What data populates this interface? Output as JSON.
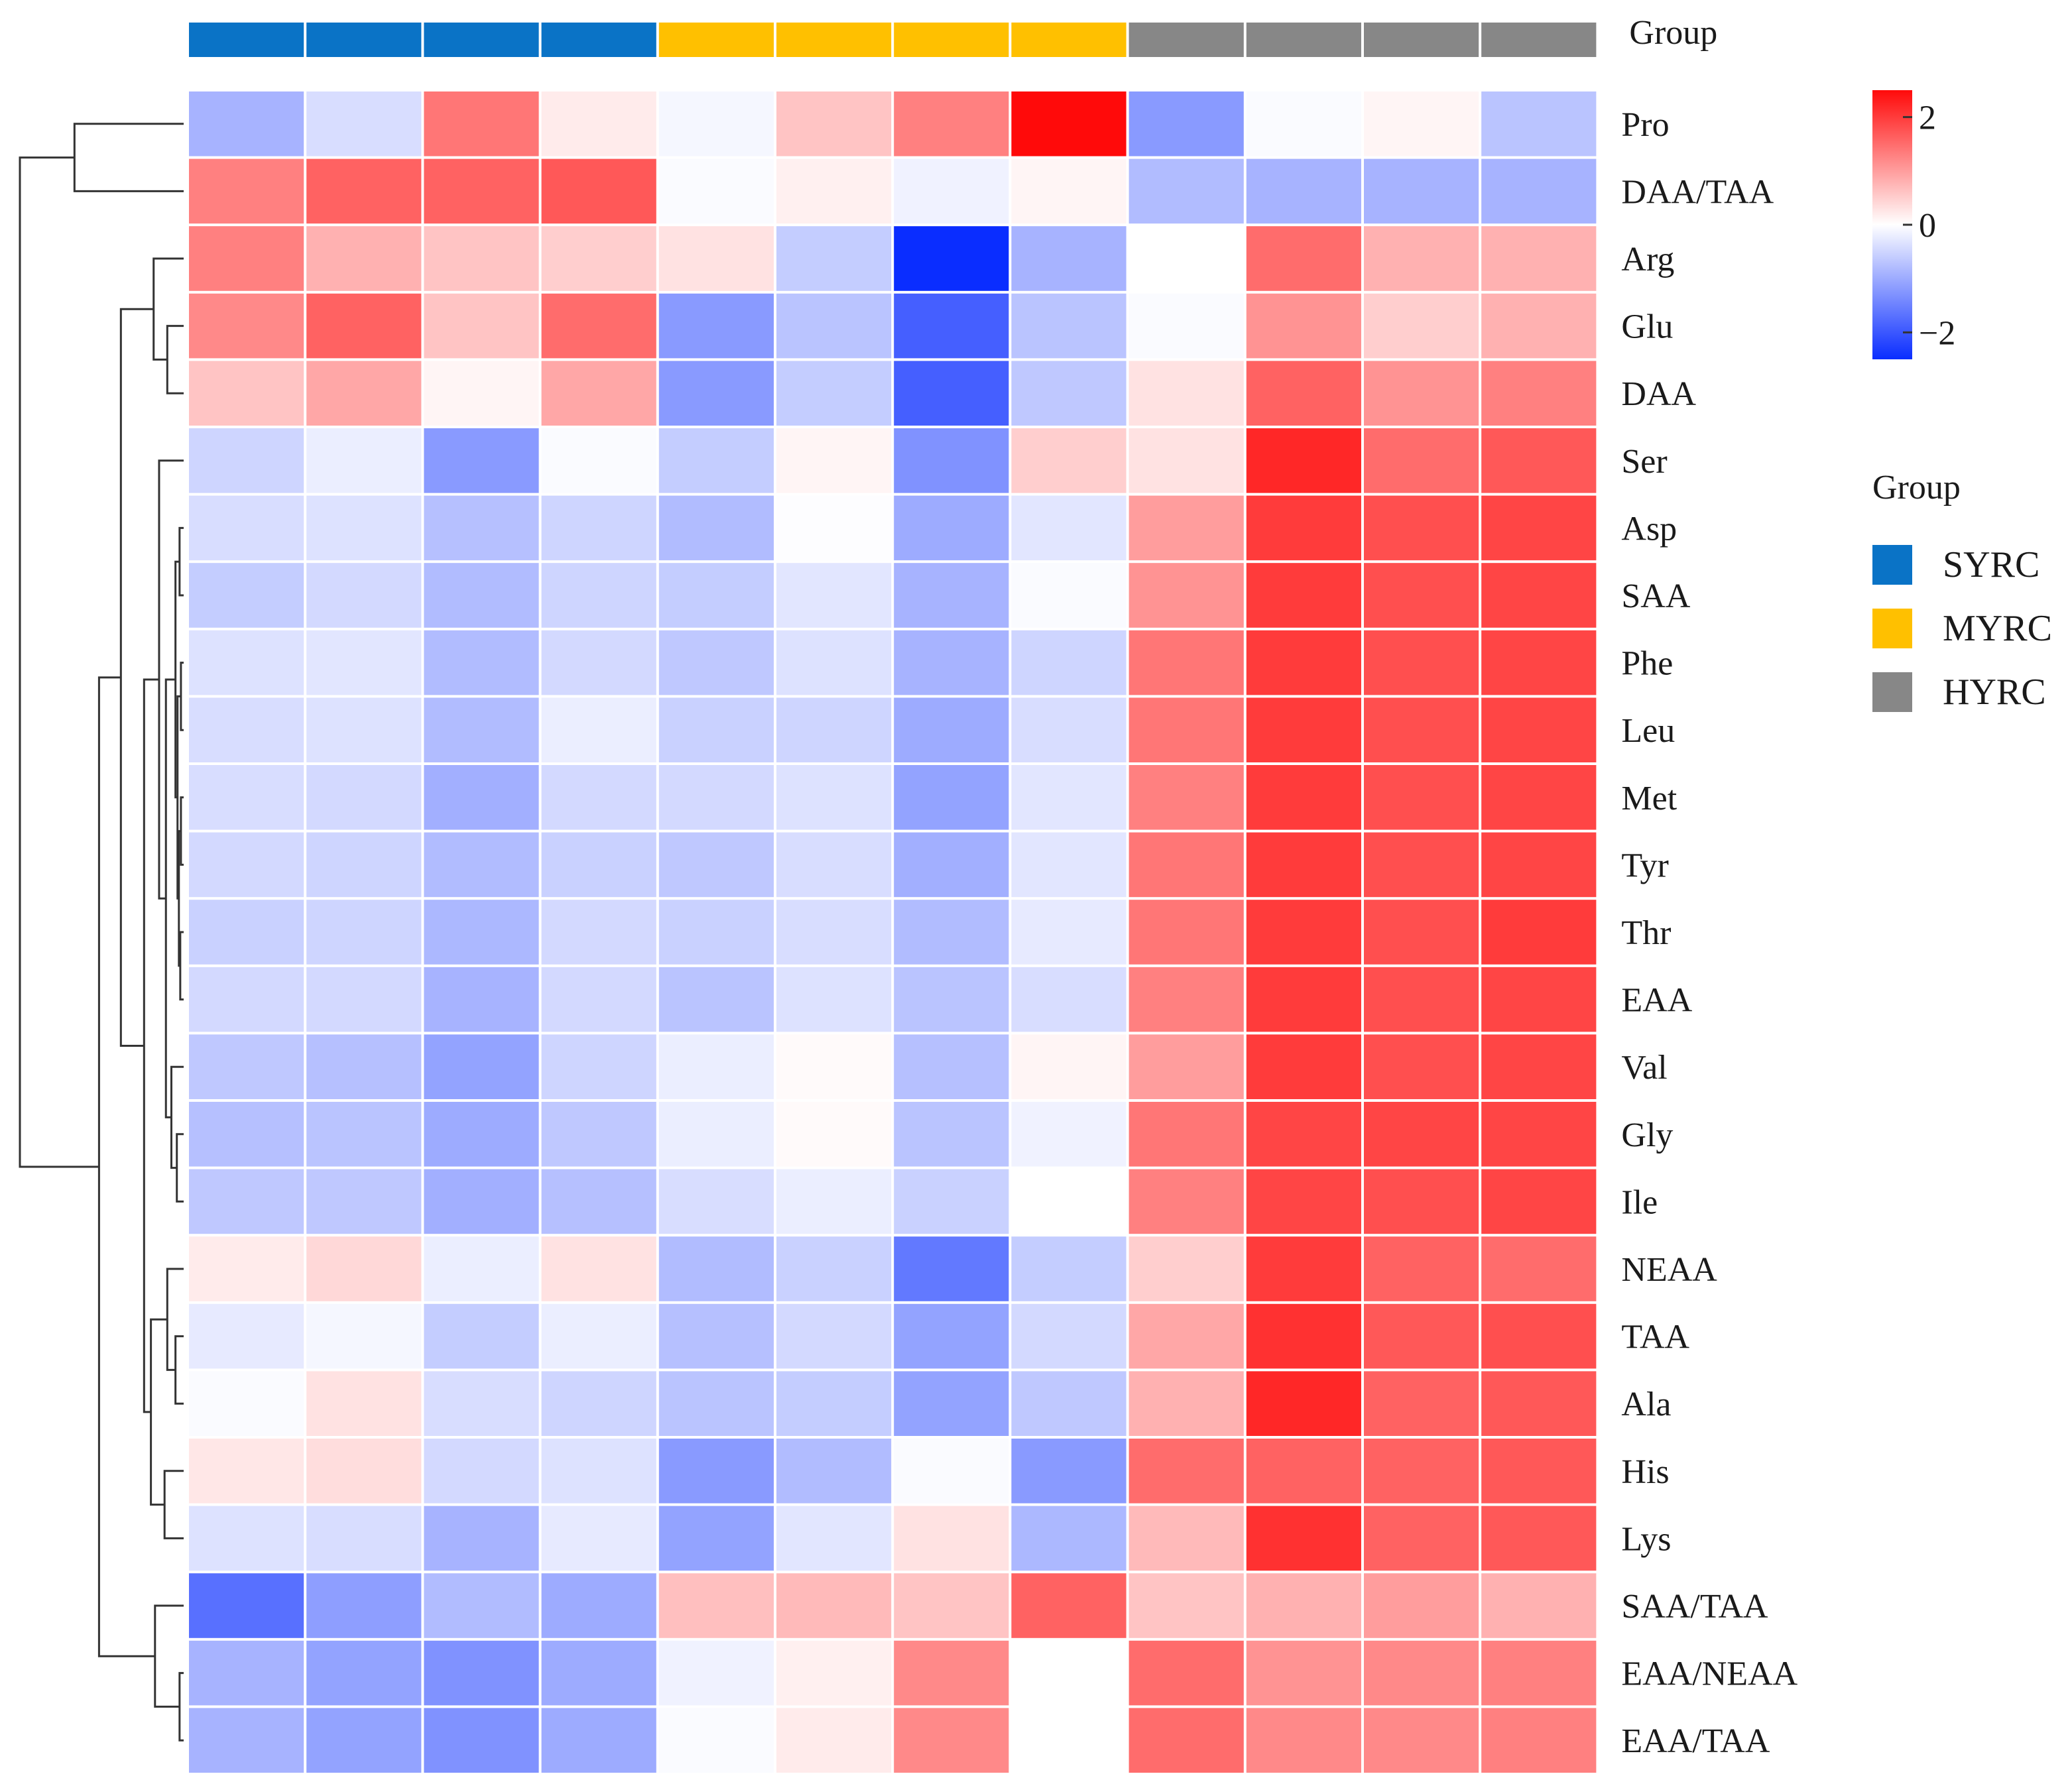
{
  "chart_data": {
    "type": "heatmap",
    "title": "",
    "xlabel": "",
    "ylabel": "",
    "annotation_bar": {
      "label": "Group",
      "groups": [
        "SYRC",
        "SYRC",
        "SYRC",
        "SYRC",
        "MYRC",
        "MYRC",
        "MYRC",
        "MYRC",
        "HYRC",
        "HYRC",
        "HYRC",
        "HYRC"
      ]
    },
    "rows": [
      "Pro",
      "DAA/TAA",
      "Arg",
      "Glu",
      "DAA",
      "Ser",
      "Asp",
      "SAA",
      "Phe",
      "Leu",
      "Met",
      "Tyr",
      "Thr",
      "EAA",
      "Val",
      "Gly",
      "Ile",
      "NEAA",
      "TAA",
      "Ala",
      "His",
      "Lys",
      "SAA/TAA",
      "EAA/NEAA",
      "EAA/TAA"
    ],
    "values": [
      [
        -0.9,
        -0.4,
        1.4,
        0.2,
        -0.1,
        0.6,
        1.3,
        2.5,
        -1.2,
        -0.05,
        0.1,
        -0.7
      ],
      [
        1.3,
        1.6,
        1.6,
        1.7,
        -0.05,
        0.15,
        -0.15,
        0.1,
        -0.8,
        -0.9,
        -0.9,
        -0.9
      ],
      [
        1.3,
        0.8,
        0.6,
        0.5,
        0.3,
        -0.6,
        -2.5,
        -0.9,
        0.0,
        1.5,
        0.8,
        0.8
      ],
      [
        1.2,
        1.6,
        0.6,
        1.5,
        -1.2,
        -0.7,
        -1.9,
        -0.7,
        -0.05,
        1.1,
        0.5,
        0.8
      ],
      [
        0.6,
        0.9,
        0.1,
        0.9,
        -1.2,
        -0.6,
        -1.9,
        -0.65,
        0.3,
        1.6,
        1.1,
        1.3
      ],
      [
        -0.5,
        -0.2,
        -1.2,
        -0.05,
        -0.6,
        0.1,
        -1.3,
        0.5,
        0.3,
        2.2,
        1.5,
        1.7
      ],
      [
        -0.4,
        -0.35,
        -0.75,
        -0.5,
        -0.8,
        -0.02,
        -1.0,
        -0.3,
        1.0,
        2.0,
        1.8,
        1.9
      ],
      [
        -0.6,
        -0.45,
        -0.8,
        -0.5,
        -0.6,
        -0.3,
        -0.9,
        -0.05,
        1.1,
        2.0,
        1.8,
        1.9
      ],
      [
        -0.35,
        -0.3,
        -0.8,
        -0.45,
        -0.65,
        -0.35,
        -0.9,
        -0.5,
        1.4,
        2.0,
        1.8,
        1.9
      ],
      [
        -0.4,
        -0.35,
        -0.8,
        -0.2,
        -0.55,
        -0.5,
        -1.0,
        -0.4,
        1.4,
        2.0,
        1.8,
        1.9
      ],
      [
        -0.4,
        -0.45,
        -0.95,
        -0.45,
        -0.45,
        -0.35,
        -1.1,
        -0.3,
        1.3,
        2.0,
        1.8,
        1.9
      ],
      [
        -0.45,
        -0.5,
        -0.8,
        -0.55,
        -0.65,
        -0.4,
        -0.95,
        -0.3,
        1.4,
        2.0,
        1.8,
        1.9
      ],
      [
        -0.55,
        -0.5,
        -0.85,
        -0.45,
        -0.55,
        -0.4,
        -0.8,
        -0.25,
        1.4,
        2.0,
        1.8,
        2.0
      ],
      [
        -0.45,
        -0.45,
        -0.9,
        -0.45,
        -0.7,
        -0.35,
        -0.7,
        -0.4,
        1.3,
        2.0,
        1.8,
        1.9
      ],
      [
        -0.65,
        -0.75,
        -1.1,
        -0.5,
        -0.2,
        0.05,
        -0.75,
        0.1,
        1.0,
        2.0,
        1.8,
        1.9
      ],
      [
        -0.75,
        -0.7,
        -1.0,
        -0.65,
        -0.2,
        0.05,
        -0.7,
        -0.15,
        1.4,
        1.9,
        1.9,
        1.9
      ],
      [
        -0.65,
        -0.65,
        -0.95,
        -0.75,
        -0.4,
        -0.2,
        -0.55,
        0.0,
        1.3,
        1.9,
        1.8,
        1.9
      ],
      [
        0.2,
        0.4,
        -0.2,
        0.3,
        -0.8,
        -0.55,
        -1.6,
        -0.6,
        0.5,
        2.0,
        1.6,
        1.5
      ],
      [
        -0.25,
        -0.1,
        -0.6,
        -0.2,
        -0.75,
        -0.45,
        -1.1,
        -0.45,
        0.9,
        2.1,
        1.7,
        1.8
      ],
      [
        -0.05,
        0.3,
        -0.4,
        -0.5,
        -0.7,
        -0.6,
        -1.1,
        -0.65,
        0.8,
        2.2,
        1.6,
        1.7
      ],
      [
        0.25,
        0.35,
        -0.45,
        -0.35,
        -1.2,
        -0.8,
        -0.05,
        -1.2,
        1.5,
        1.6,
        1.6,
        1.7
      ],
      [
        -0.35,
        -0.4,
        -0.9,
        -0.25,
        -1.1,
        -0.3,
        0.3,
        -0.85,
        0.7,
        2.1,
        1.6,
        1.7
      ],
      [
        -1.7,
        -1.15,
        -0.8,
        -1.0,
        0.65,
        0.7,
        0.6,
        1.6,
        0.6,
        0.8,
        1.0,
        0.8
      ],
      [
        -0.9,
        -1.1,
        -1.3,
        -1.0,
        -0.15,
        0.15,
        1.2,
        0.0,
        1.5,
        1.1,
        1.2,
        1.3
      ],
      [
        -0.9,
        -1.1,
        -1.3,
        -1.0,
        -0.05,
        0.2,
        1.2,
        0.0,
        1.5,
        1.2,
        1.2,
        1.3
      ]
    ],
    "colorbar": {
      "min": -2.5,
      "max": 2.5,
      "ticks": [
        "2",
        "0",
        "−2"
      ],
      "tick_values": [
        2,
        0,
        -2
      ],
      "colors": {
        "low": "#0a2dff",
        "mid": "#ffffff",
        "high": "#ff0a0a"
      }
    },
    "legend": {
      "title": "Group",
      "placement": "right",
      "items": [
        {
          "name": "SYRC",
          "color": "#0a73c6"
        },
        {
          "name": "MYRC",
          "color": "#ffc000"
        },
        {
          "name": "HYRC",
          "color": "#878787"
        }
      ]
    },
    "row_dendrogram": true
  }
}
